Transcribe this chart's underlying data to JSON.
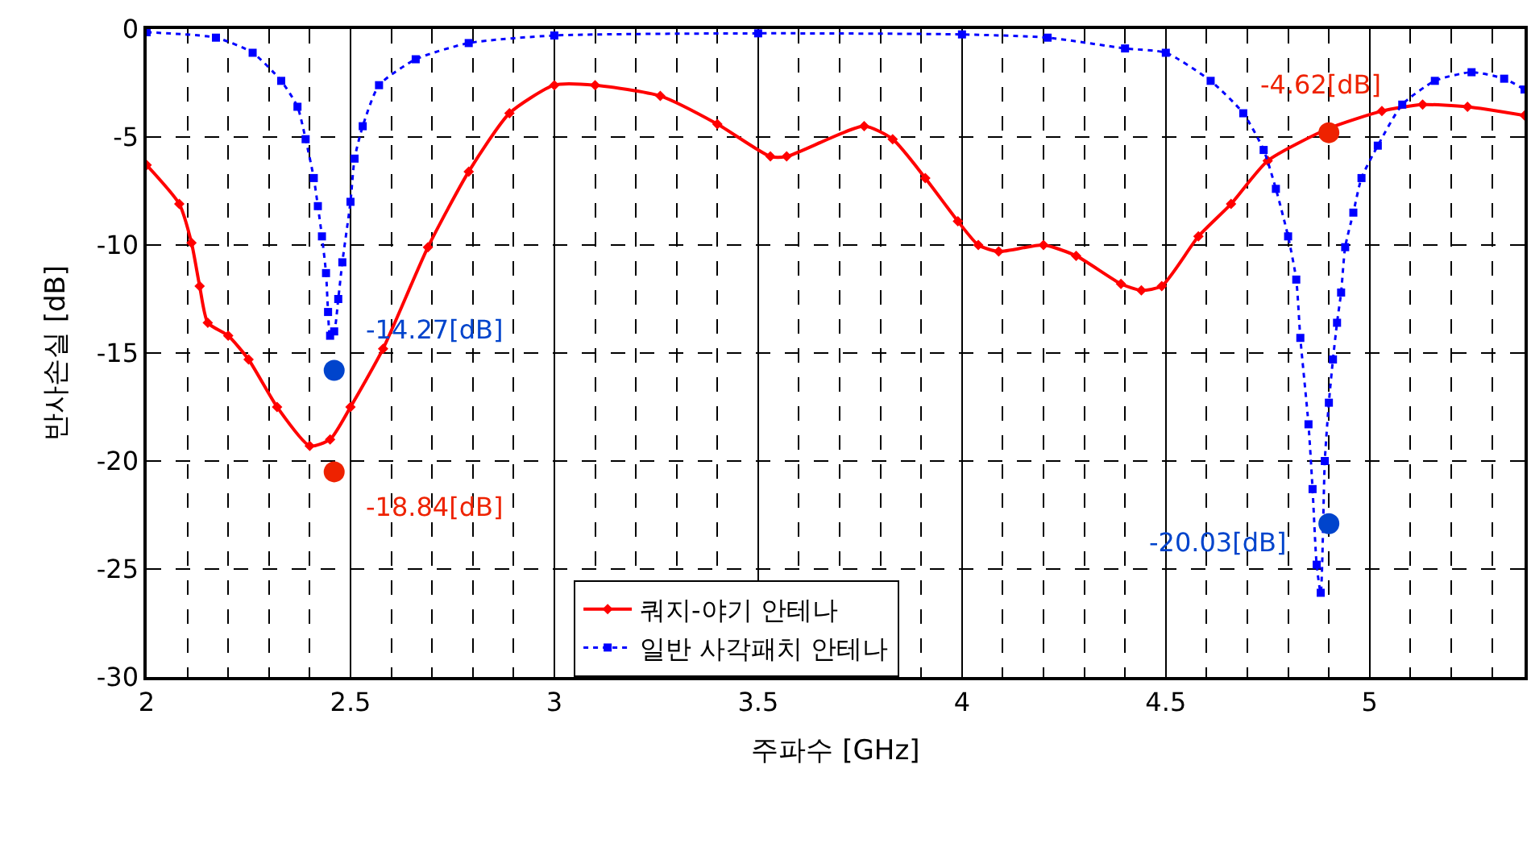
{
  "chart_data": {
    "type": "line",
    "xlabel": "주파수 [GHz]",
    "ylabel": "반사손실 [dB]",
    "xlim": [
      2,
      5.38
    ],
    "xticks": [
      2,
      2.5,
      3,
      3.5,
      4,
      4.5,
      5
    ],
    "ylim": [
      -30,
      0
    ],
    "yticks": [
      -30,
      -25,
      -20,
      -15,
      -10,
      -5,
      0
    ],
    "grid": true,
    "legend": "bottom",
    "series": [
      {
        "name": "쿼지-야기 안테나",
        "color": "#ff0000",
        "marker": "diamond",
        "line_style": "solid",
        "x": [
          2.0,
          2.08,
          2.11,
          2.13,
          2.15,
          2.2,
          2.25,
          2.32,
          2.4,
          2.45,
          2.5,
          2.58,
          2.69,
          2.79,
          2.89,
          3.0,
          3.1,
          3.26,
          3.4,
          3.53,
          3.57,
          3.76,
          3.83,
          3.91,
          3.99,
          4.04,
          4.09,
          4.2,
          4.28,
          4.39,
          4.44,
          4.49,
          4.58,
          4.66,
          4.75,
          4.9,
          5.03,
          5.13,
          5.24,
          5.38
        ],
        "values": [
          -6.3,
          -8.1,
          -9.9,
          -11.9,
          -13.6,
          -14.2,
          -15.3,
          -17.5,
          -19.3,
          -19.0,
          -17.5,
          -14.8,
          -10.1,
          -6.6,
          -3.9,
          -2.6,
          -2.6,
          -3.1,
          -4.4,
          -5.9,
          -5.9,
          -4.5,
          -5.1,
          -6.9,
          -8.9,
          -10.0,
          -10.3,
          -10.0,
          -10.5,
          -11.8,
          -12.1,
          -11.9,
          -9.6,
          -8.1,
          -6.1,
          -4.6,
          -3.8,
          -3.5,
          -3.6,
          -4.0
        ]
      },
      {
        "name": "일반 사각패치 안테나",
        "color": "#0000ff",
        "marker": "square",
        "line_style": "dotted",
        "x": [
          2.0,
          2.17,
          2.26,
          2.33,
          2.37,
          2.39,
          2.41,
          2.42,
          2.43,
          2.44,
          2.445,
          2.45,
          2.46,
          2.47,
          2.48,
          2.5,
          2.51,
          2.53,
          2.57,
          2.66,
          2.79,
          3.0,
          3.5,
          4.0,
          4.21,
          4.4,
          4.5,
          4.61,
          4.69,
          4.74,
          4.77,
          4.8,
          4.82,
          4.83,
          4.85,
          4.86,
          4.87,
          4.88,
          4.89,
          4.9,
          4.91,
          4.92,
          4.93,
          4.94,
          4.96,
          4.98,
          5.02,
          5.08,
          5.16,
          5.25,
          5.33,
          5.38
        ],
        "values": [
          -0.15,
          -0.4,
          -1.1,
          -2.4,
          -3.6,
          -5.1,
          -6.9,
          -8.2,
          -9.6,
          -11.3,
          -13.1,
          -14.2,
          -14.0,
          -12.5,
          -10.8,
          -8.0,
          -6.0,
          -4.5,
          -2.6,
          -1.4,
          -0.65,
          -0.3,
          -0.2,
          -0.25,
          -0.4,
          -0.9,
          -1.1,
          -2.4,
          -3.9,
          -5.6,
          -7.4,
          -9.6,
          -11.6,
          -14.3,
          -18.3,
          -21.3,
          -24.8,
          -26.1,
          -20.0,
          -17.3,
          -15.3,
          -13.6,
          -12.2,
          -10.1,
          -8.5,
          -6.9,
          -5.4,
          -3.5,
          -2.4,
          -2.0,
          -2.3,
          -2.8
        ]
      },
      {
        "type": "scatter",
        "color": "#0044cc",
        "marker": "circle",
        "x": [
          2.46,
          4.9
        ],
        "values": [
          -15.8,
          -22.9
        ]
      },
      {
        "type": "scatter",
        "color": "#ee2200",
        "marker": "circle",
        "x": [
          2.46,
          4.9
        ],
        "values": [
          -20.5,
          -4.8
        ]
      }
    ],
    "annotations": [
      "-14.27[dB]",
      "-20.03[dB]",
      "-18.84[dB]",
      "-4.62[dB]"
    ]
  }
}
